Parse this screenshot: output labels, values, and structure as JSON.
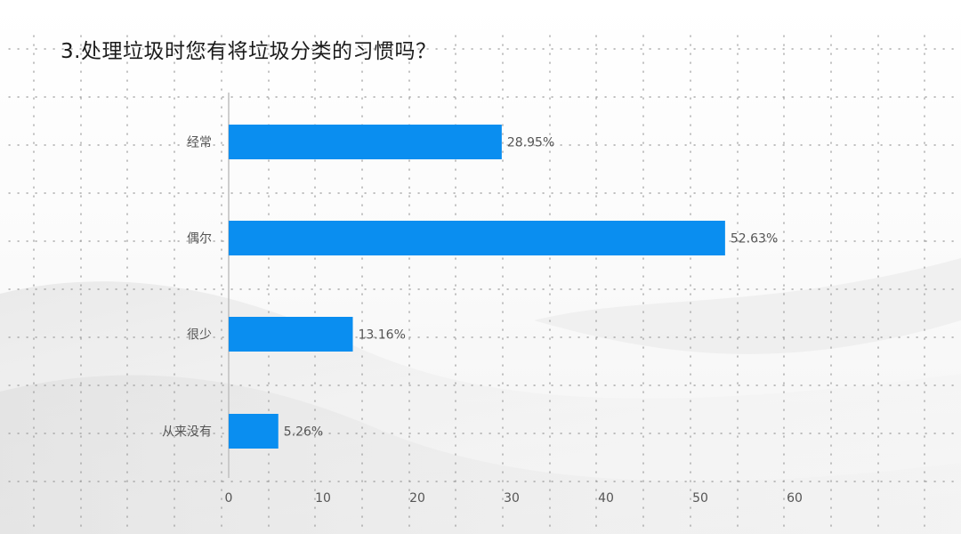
{
  "slide": {
    "title": "3.处理垃圾时您有将垃圾分类的习惯吗？"
  },
  "chart_data": {
    "type": "bar",
    "orientation": "horizontal",
    "title": "3.处理垃圾时您有将垃圾分类的习惯吗？",
    "categories": [
      "经常",
      "偶尔",
      "很少",
      "从来没有"
    ],
    "values": [
      28.95,
      52.63,
      13.16,
      5.26
    ],
    "data_labels": [
      "28.95%",
      "52.63%",
      "13.16%",
      "5.26%"
    ],
    "xlabel": "",
    "ylabel": "",
    "xlim": [
      0,
      60
    ],
    "xticks": [
      0,
      10,
      20,
      30,
      40,
      50,
      60
    ],
    "xtick_labels": [
      "0",
      "10",
      "20",
      "30",
      "40",
      "50",
      "60"
    ],
    "grid": "dotted",
    "legend": "none",
    "bar_color": "#0a8ef0"
  },
  "colors": {
    "bar": "#0a8ef0",
    "label_text": "#555555",
    "tick_text": "#555555",
    "axis_line": "#bfbfbf",
    "grid_dots": "#9a9a9a"
  }
}
